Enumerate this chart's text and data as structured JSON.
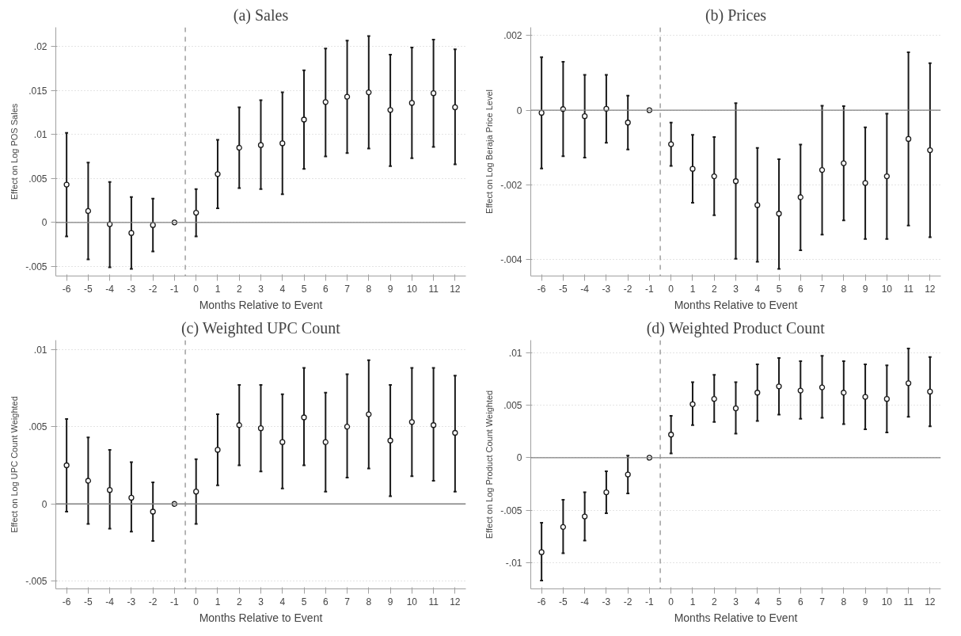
{
  "chart_data": [
    {
      "type": "scatter",
      "title": "(a) Sales",
      "xlabel": "Months Relative to Event",
      "ylabel": "Effect on Log POS Sales",
      "color": "#1a1a1a",
      "marker": "circle",
      "grid": "y",
      "x": [
        -6,
        -5,
        -4,
        -3,
        -2,
        -1,
        0,
        1,
        2,
        3,
        4,
        5,
        6,
        7,
        8,
        9,
        10,
        11,
        12
      ],
      "values": [
        0.0043,
        0.0013,
        -0.0002,
        -0.0012,
        -0.0003,
        0,
        0.0011,
        0.0055,
        0.0085,
        0.0088,
        0.009,
        0.0117,
        0.0137,
        0.0143,
        0.0148,
        0.0128,
        0.0136,
        0.0147,
        0.0131
      ],
      "errors": [
        [
          -0.0016,
          0.0102
        ],
        [
          -0.0042,
          0.0068
        ],
        [
          -0.0051,
          0.0046
        ],
        [
          -0.0053,
          0.0029
        ],
        [
          -0.0033,
          0.0027
        ],
        null,
        [
          -0.0016,
          0.0038
        ],
        [
          0.0016,
          0.0094
        ],
        [
          0.0039,
          0.0131
        ],
        [
          0.0038,
          0.0139
        ],
        [
          0.0032,
          0.0148
        ],
        [
          0.0061,
          0.0173
        ],
        [
          0.0075,
          0.0198
        ],
        [
          0.0079,
          0.0207
        ],
        [
          0.0084,
          0.0212
        ],
        [
          0.0064,
          0.0191
        ],
        [
          0.0073,
          0.0199
        ],
        [
          0.0086,
          0.0208
        ],
        [
          0.0066,
          0.0197
        ]
      ],
      "xlim": [
        -6.5,
        12.5
      ],
      "xticks": [
        -6,
        -5,
        -4,
        -3,
        -2,
        -1,
        0,
        1,
        2,
        3,
        4,
        5,
        6,
        7,
        8,
        9,
        10,
        11,
        12
      ],
      "ylim": [
        -0.0061,
        0.0222
      ],
      "yticks": [
        {
          "value": -0.005,
          "label": "-.005"
        },
        0,
        {
          "value": 0.005,
          "label": ".005"
        },
        {
          "value": 0.01,
          "label": ".01"
        },
        {
          "value": 0.015,
          "label": ".015"
        },
        {
          "value": 0.02,
          "label": ".02"
        }
      ],
      "ref_lines": [
        {
          "axis": "y",
          "value": 0,
          "color": "#808080",
          "line_style": "solid"
        },
        {
          "axis": "x",
          "value": -0.5,
          "color": "#909090",
          "line_style": "dashed"
        }
      ]
    },
    {
      "type": "scatter",
      "title": "(b) Prices",
      "xlabel": "Months Relative to Event",
      "ylabel": "Effect on Log Beraja Price Level",
      "color": "#1a1a1a",
      "marker": "circle",
      "grid": "y",
      "x": [
        -6,
        -5,
        -4,
        -3,
        -2,
        -1,
        0,
        1,
        2,
        3,
        4,
        5,
        6,
        7,
        8,
        9,
        10,
        11,
        12
      ],
      "values": [
        -7e-05,
        3e-05,
        -0.00016,
        4e-05,
        -0.00033,
        0,
        -0.00091,
        -0.00157,
        -0.00177,
        -0.0019,
        -0.00254,
        -0.00277,
        -0.00233,
        -0.0016,
        -0.00142,
        -0.00195,
        -0.00177,
        -0.00077,
        -0.00107
      ],
      "errors": [
        [
          -0.00156,
          0.00142
        ],
        [
          -0.00123,
          0.0013
        ],
        [
          -0.00127,
          0.00095
        ],
        [
          -0.00087,
          0.00095
        ],
        [
          -0.00105,
          0.00039
        ],
        null,
        [
          -0.00149,
          -0.00033
        ],
        [
          -0.00248,
          -0.00066
        ],
        [
          -0.00281,
          -0.00072
        ],
        [
          -0.00398,
          0.00019
        ],
        [
          -0.00406,
          -0.00101
        ],
        [
          -0.00425,
          -0.00131
        ],
        [
          -0.00375,
          -0.00092
        ],
        [
          -0.00333,
          0.00012
        ],
        [
          -0.00295,
          0.00011
        ],
        [
          -0.00345,
          -0.00046
        ],
        [
          -0.00345,
          -9e-05
        ],
        [
          -0.00309,
          0.00155
        ],
        [
          -0.0034,
          0.00126
        ]
      ],
      "xlim": [
        -6.5,
        12.5
      ],
      "xticks": [
        -6,
        -5,
        -4,
        -3,
        -2,
        -1,
        0,
        1,
        2,
        3,
        4,
        5,
        6,
        7,
        8,
        9,
        10,
        11,
        12
      ],
      "ylim": [
        -0.00444,
        0.00222
      ],
      "yticks": [
        {
          "value": -0.004,
          "label": "-.004"
        },
        {
          "value": -0.002,
          "label": "-.002"
        },
        0,
        {
          "value": 0.002,
          "label": ".002"
        }
      ],
      "ref_lines": [
        {
          "axis": "y",
          "value": 0,
          "color": "#808080",
          "line_style": "solid"
        },
        {
          "axis": "x",
          "value": -0.5,
          "color": "#909090",
          "line_style": "dashed"
        }
      ]
    },
    {
      "type": "scatter",
      "title": "(c) Weighted UPC Count",
      "xlabel": "Months Relative to Event",
      "ylabel": "Effect on Log UPC Count Weighted",
      "color": "#1a1a1a",
      "marker": "circle",
      "grid": "y",
      "x": [
        -6,
        -5,
        -4,
        -3,
        -2,
        -1,
        0,
        1,
        2,
        3,
        4,
        5,
        6,
        7,
        8,
        9,
        10,
        11,
        12
      ],
      "values": [
        0.0025,
        0.0015,
        0.0009,
        0.0004,
        -0.0005,
        0,
        0.0008,
        0.0035,
        0.0051,
        0.0049,
        0.004,
        0.0056,
        0.004,
        0.005,
        0.0058,
        0.0041,
        0.0053,
        0.0051,
        0.0046
      ],
      "errors": [
        [
          -0.0005,
          0.0055
        ],
        [
          -0.0013,
          0.0043
        ],
        [
          -0.0016,
          0.0035
        ],
        [
          -0.0018,
          0.0027
        ],
        [
          -0.0024,
          0.0014
        ],
        null,
        [
          -0.0013,
          0.0029
        ],
        [
          0.0012,
          0.0058
        ],
        [
          0.0025,
          0.0077
        ],
        [
          0.0021,
          0.0077
        ],
        [
          0.001,
          0.0071
        ],
        [
          0.0025,
          0.0088
        ],
        [
          0.0008,
          0.0072
        ],
        [
          0.0017,
          0.0084
        ],
        [
          0.0023,
          0.0093
        ],
        [
          0.0005,
          0.0077
        ],
        [
          0.0018,
          0.0088
        ],
        [
          0.0015,
          0.0088
        ],
        [
          0.0008,
          0.0083
        ]
      ],
      "xlim": [
        -6.5,
        12.5
      ],
      "xticks": [
        -6,
        -5,
        -4,
        -3,
        -2,
        -1,
        0,
        1,
        2,
        3,
        4,
        5,
        6,
        7,
        8,
        9,
        10,
        11,
        12
      ],
      "ylim": [
        -0.0055,
        0.0106
      ],
      "yticks": [
        {
          "value": -0.005,
          "label": "-.005"
        },
        0,
        {
          "value": 0.005,
          "label": ".005"
        },
        {
          "value": 0.01,
          "label": ".01"
        }
      ],
      "ref_lines": [
        {
          "axis": "y",
          "value": 0,
          "color": "#808080",
          "line_style": "solid"
        },
        {
          "axis": "x",
          "value": -0.5,
          "color": "#909090",
          "line_style": "dashed"
        }
      ]
    },
    {
      "type": "scatter",
      "title": "(d) Weighted Product Count",
      "xlabel": "Months Relative to Event",
      "ylabel": "Effect on Log Product Count Weighted",
      "color": "#1a1a1a",
      "marker": "circle",
      "grid": "y",
      "x": [
        -6,
        -5,
        -4,
        -3,
        -2,
        -1,
        0,
        1,
        2,
        3,
        4,
        5,
        6,
        7,
        8,
        9,
        10,
        11,
        12
      ],
      "values": [
        -0.009,
        -0.0066,
        -0.0056,
        -0.0033,
        -0.0016,
        0,
        0.0022,
        0.0051,
        0.0056,
        0.0047,
        0.0062,
        0.0068,
        0.0064,
        0.0067,
        0.0062,
        0.0058,
        0.0056,
        0.0071,
        0.0063
      ],
      "errors": [
        [
          -0.0117,
          -0.0062
        ],
        [
          -0.0091,
          -0.004
        ],
        [
          -0.0079,
          -0.0033
        ],
        [
          -0.0053,
          -0.0013
        ],
        [
          -0.0034,
          0.0002
        ],
        null,
        [
          0.0004,
          0.004
        ],
        [
          0.0031,
          0.0072
        ],
        [
          0.0034,
          0.0079
        ],
        [
          0.0023,
          0.0072
        ],
        [
          0.0035,
          0.0089
        ],
        [
          0.0041,
          0.0095
        ],
        [
          0.0037,
          0.0092
        ],
        [
          0.0038,
          0.0097
        ],
        [
          0.0032,
          0.0092
        ],
        [
          0.0027,
          0.0089
        ],
        [
          0.0024,
          0.0088
        ],
        [
          0.0039,
          0.0104
        ],
        [
          0.003,
          0.0096
        ]
      ],
      "xlim": [
        -6.5,
        12.5
      ],
      "xticks": [
        -6,
        -5,
        -4,
        -3,
        -2,
        -1,
        0,
        1,
        2,
        3,
        4,
        5,
        6,
        7,
        8,
        9,
        10,
        11,
        12
      ],
      "ylim": [
        -0.0125,
        0.0112
      ],
      "yticks": [
        {
          "value": -0.01,
          "label": "-.01"
        },
        {
          "value": -0.005,
          "label": "-.005"
        },
        0,
        {
          "value": 0.005,
          "label": ".005"
        },
        {
          "value": 0.01,
          "label": ".01"
        }
      ],
      "ref_lines": [
        {
          "axis": "y",
          "value": 0,
          "color": "#808080",
          "line_style": "solid"
        },
        {
          "axis": "x",
          "value": -0.5,
          "color": "#909090",
          "line_style": "dashed"
        }
      ]
    }
  ]
}
